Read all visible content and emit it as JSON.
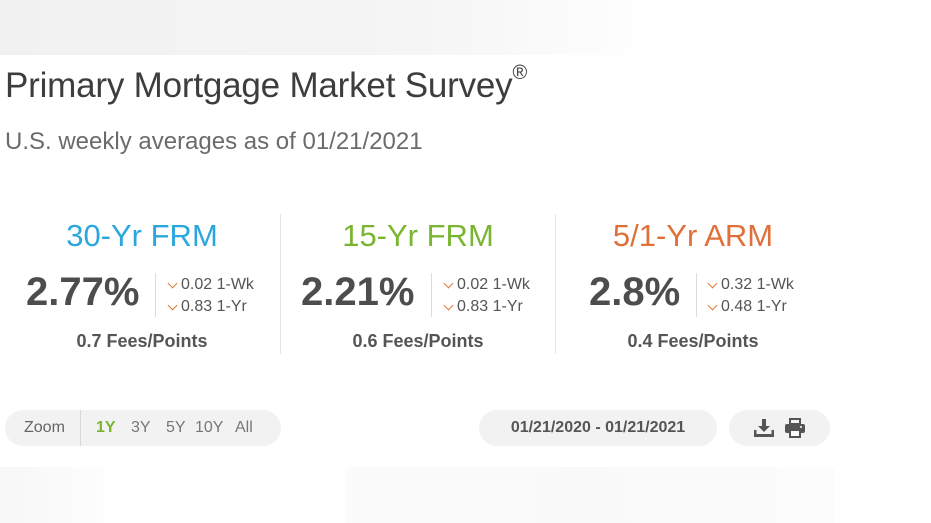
{
  "header": {
    "title": "Primary Mortgage Market Survey",
    "title_mark": "®",
    "subtitle": "U.S. weekly averages as of 01/21/2021"
  },
  "rates": [
    {
      "name": "30-Yr FRM",
      "color": "#2aa7dd",
      "rate": "2.77%",
      "week_change": "0.02 1-Wk",
      "year_change": "0.83 1-Yr",
      "fees": "0.7 Fees/Points"
    },
    {
      "name": "15-Yr FRM",
      "color": "#7ab532",
      "rate": "2.21%",
      "week_change": "0.02 1-Wk",
      "year_change": "0.83 1-Yr",
      "fees": "0.6 Fees/Points"
    },
    {
      "name": "5/1-Yr ARM",
      "color": "#e0703a",
      "rate": "2.8%",
      "week_change": "0.32 1-Wk",
      "year_change": "0.48 1-Yr",
      "fees": "0.4 Fees/Points"
    }
  ],
  "change_direction_icon": "chevron-down-icon",
  "change_color": "#e07a3a",
  "zoom": {
    "label": "Zoom",
    "options": [
      "1Y",
      "3Y",
      "5Y",
      "10Y",
      "All"
    ],
    "selected": "1Y",
    "active_color": "#7ab532"
  },
  "date_range": "01/21/2020 - 01/21/2021",
  "tools": {
    "download_icon": "download-icon",
    "print_icon": "print-icon"
  }
}
